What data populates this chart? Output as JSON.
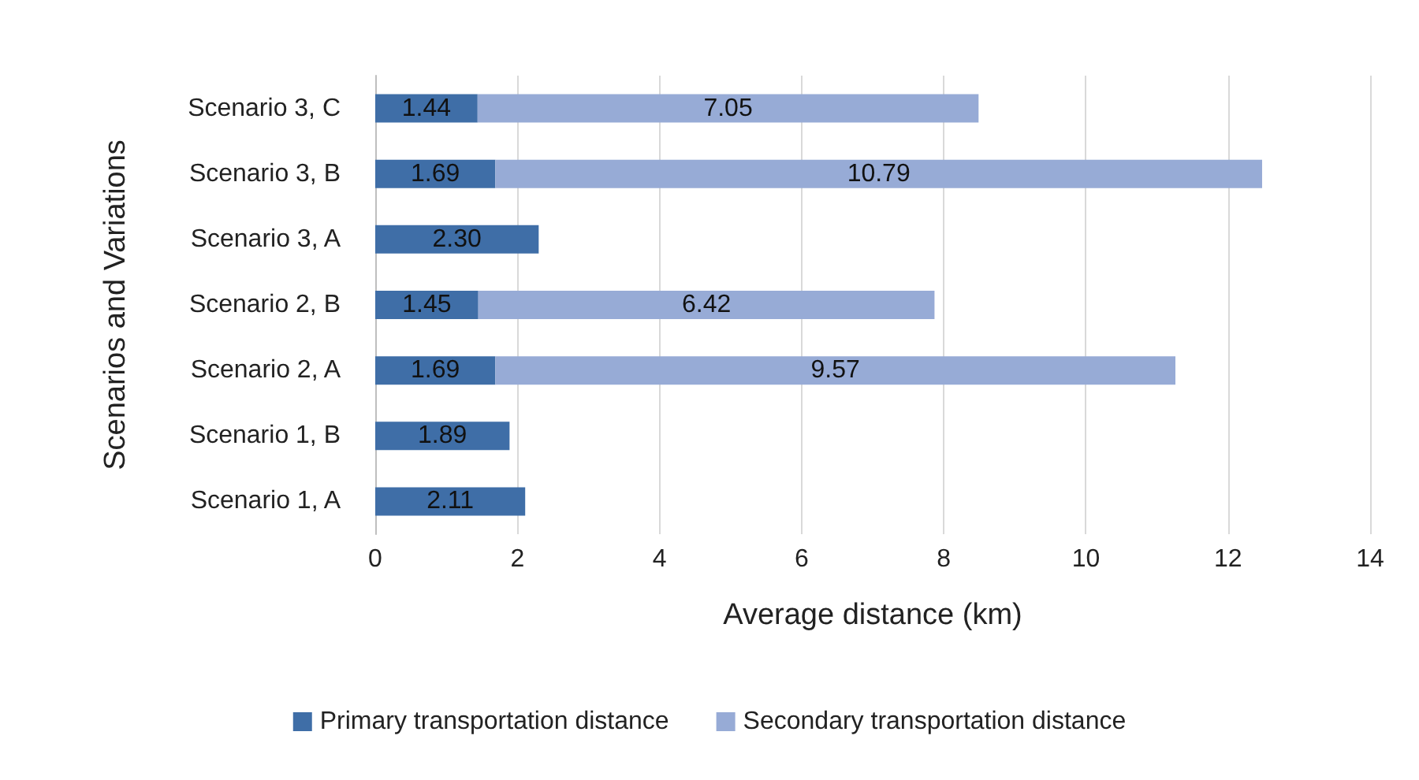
{
  "chart_data": {
    "type": "bar",
    "orientation": "horizontal",
    "stacked": true,
    "xlabel": "Average distance (km)",
    "ylabel": "Scenarios and Variations",
    "categories": [
      "Scenario 3, C",
      "Scenario 3, B",
      "Scenario 3, A",
      "Scenario 2, B",
      "Scenario 2, A",
      "Scenario 1, B",
      "Scenario 1, A"
    ],
    "series": [
      {
        "name": "Primary transportation distance",
        "color": "#3f6ea7",
        "values": [
          1.44,
          1.69,
          2.3,
          1.45,
          1.69,
          1.89,
          2.11
        ],
        "value_labels": [
          "1.44",
          "1.69",
          "2.30",
          "1.45",
          "1.69",
          "1.89",
          "2.11"
        ]
      },
      {
        "name": "Secondary transportation distance",
        "color": "#97abd6",
        "values": [
          7.05,
          10.79,
          null,
          6.42,
          9.57,
          null,
          null
        ],
        "value_labels": [
          "7.05",
          "10.79",
          null,
          "6.42",
          "9.57",
          null,
          null
        ]
      }
    ],
    "xlim": [
      0,
      14
    ],
    "xticks": [
      0,
      2,
      4,
      6,
      8,
      10,
      12,
      14
    ],
    "grid": "x",
    "legend": "bottom"
  }
}
